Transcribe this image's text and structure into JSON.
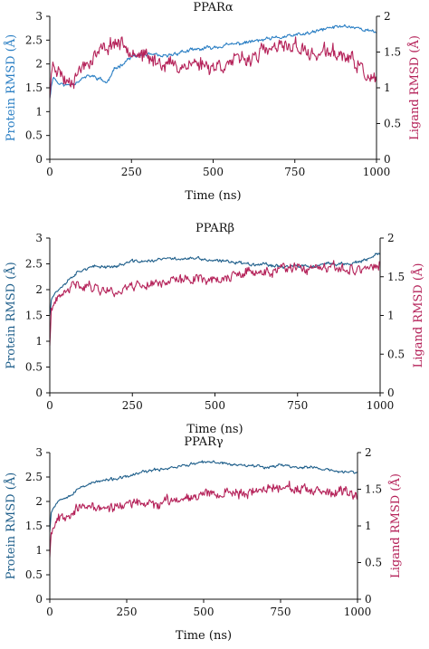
{
  "colors": {
    "protein": "#1f5f8b",
    "protein_alpha": "#2b7fc4",
    "ligand": "#b5235a",
    "axis": "#111111"
  },
  "chart_data": [
    {
      "type": "line",
      "title": "PPARα",
      "xlabel": "Time (ns)",
      "ylabel": "Protein RMSD (Å)",
      "y2label": "Ligand RMSD (Å)",
      "xlim": [
        0,
        1000
      ],
      "ylim": [
        0,
        3
      ],
      "y2lim": [
        0,
        2
      ],
      "xticks": [
        "0",
        "250",
        "500",
        "750",
        "1000"
      ],
      "yticks": [
        "0",
        "0.5",
        "1",
        "1.5",
        "2",
        "2.5",
        "3"
      ],
      "y2ticks": [
        "0",
        "0.5",
        "1",
        "1.5",
        "2"
      ],
      "series": [
        {
          "axis": "left",
          "color": "#2b7fc4",
          "noise": 0.06,
          "seed": 11,
          "x": [
            0,
            10,
            25,
            50,
            75,
            100,
            125,
            150,
            175,
            200,
            250,
            300,
            350,
            400,
            450,
            500,
            550,
            600,
            650,
            700,
            750,
            800,
            850,
            900,
            950,
            1000
          ],
          "values": [
            1.3,
            1.75,
            1.6,
            1.55,
            1.6,
            1.7,
            1.75,
            1.7,
            1.6,
            1.9,
            2.15,
            2.2,
            2.15,
            2.25,
            2.3,
            2.35,
            2.4,
            2.45,
            2.5,
            2.55,
            2.6,
            2.65,
            2.75,
            2.8,
            2.75,
            2.65
          ]
        },
        {
          "axis": "right",
          "color": "#b5235a",
          "noise": 0.16,
          "seed": 23,
          "x": [
            0,
            10,
            25,
            50,
            75,
            100,
            150,
            200,
            250,
            300,
            350,
            400,
            450,
            500,
            550,
            600,
            650,
            700,
            750,
            800,
            850,
            900,
            950,
            980,
            1000
          ],
          "values": [
            0.9,
            1.4,
            1.25,
            1.1,
            1.15,
            1.3,
            1.5,
            1.65,
            1.55,
            1.4,
            1.35,
            1.3,
            1.35,
            1.3,
            1.35,
            1.4,
            1.5,
            1.55,
            1.6,
            1.45,
            1.5,
            1.45,
            1.3,
            1.1,
            1.05
          ]
        }
      ]
    },
    {
      "type": "line",
      "title": "PPARβ",
      "xlabel": "Time (ns)",
      "ylabel": "Protein RMSD (Å)",
      "y2label": "Ligand RMSD (Å)",
      "xlim": [
        0,
        1000
      ],
      "ylim": [
        0,
        3
      ],
      "y2lim": [
        0,
        2
      ],
      "xticks": [
        "0",
        "250",
        "500",
        "750",
        "1000"
      ],
      "yticks": [
        "0",
        "0.5",
        "1",
        "1.5",
        "2",
        "2.5",
        "3"
      ],
      "y2ticks": [
        "0",
        "0.5",
        "1",
        "1.5",
        "2"
      ],
      "series": [
        {
          "axis": "left",
          "color": "#1f5f8b",
          "noise": 0.05,
          "seed": 37,
          "x": [
            0,
            5,
            25,
            50,
            75,
            100,
            150,
            200,
            250,
            300,
            350,
            400,
            450,
            500,
            550,
            600,
            650,
            700,
            750,
            800,
            850,
            900,
            950,
            1000
          ],
          "values": [
            1.5,
            1.85,
            2.0,
            2.15,
            2.3,
            2.4,
            2.45,
            2.45,
            2.55,
            2.55,
            2.6,
            2.6,
            2.6,
            2.55,
            2.55,
            2.5,
            2.5,
            2.45,
            2.45,
            2.45,
            2.5,
            2.5,
            2.55,
            2.7
          ]
        },
        {
          "axis": "right",
          "color": "#b5235a",
          "noise": 0.1,
          "seed": 41,
          "x": [
            0,
            5,
            25,
            50,
            75,
            100,
            150,
            200,
            250,
            300,
            350,
            400,
            450,
            500,
            550,
            600,
            650,
            700,
            750,
            800,
            850,
            900,
            950,
            1000
          ],
          "values": [
            0.6,
            1.1,
            1.2,
            1.3,
            1.4,
            1.4,
            1.35,
            1.3,
            1.4,
            1.4,
            1.45,
            1.45,
            1.5,
            1.45,
            1.5,
            1.55,
            1.55,
            1.6,
            1.6,
            1.6,
            1.6,
            1.6,
            1.6,
            1.65
          ]
        }
      ]
    },
    {
      "type": "line",
      "title": "PPARγ",
      "xlabel": "Time (ns)",
      "ylabel": "Protein RMSD (Å)",
      "y2label": "Ligand RMSD (Å)",
      "xlim": [
        0,
        1000
      ],
      "ylim": [
        0,
        3
      ],
      "y2lim": [
        0,
        2
      ],
      "xticks": [
        "0",
        "250",
        "500",
        "750",
        "1000"
      ],
      "yticks": [
        "0",
        "0.5",
        "1",
        "1.5",
        "2",
        "2.5",
        "3"
      ],
      "y2ticks": [
        "0",
        "0.5",
        "1",
        "1.5",
        "2"
      ],
      "series": [
        {
          "axis": "left",
          "color": "#1f5f8b",
          "noise": 0.045,
          "seed": 53,
          "x": [
            0,
            5,
            25,
            50,
            75,
            100,
            150,
            200,
            250,
            300,
            350,
            400,
            450,
            500,
            550,
            600,
            650,
            700,
            750,
            800,
            850,
            900,
            950,
            1000
          ],
          "values": [
            1.4,
            1.8,
            2.0,
            2.1,
            2.15,
            2.3,
            2.4,
            2.45,
            2.5,
            2.6,
            2.65,
            2.7,
            2.75,
            2.8,
            2.8,
            2.75,
            2.75,
            2.7,
            2.75,
            2.7,
            2.7,
            2.65,
            2.6,
            2.6
          ]
        },
        {
          "axis": "right",
          "color": "#b5235a",
          "noise": 0.1,
          "seed": 67,
          "x": [
            0,
            5,
            25,
            50,
            75,
            100,
            150,
            200,
            250,
            300,
            350,
            400,
            450,
            500,
            550,
            600,
            650,
            700,
            750,
            800,
            850,
            900,
            950,
            1000
          ],
          "values": [
            0.6,
            0.95,
            1.1,
            1.15,
            1.2,
            1.25,
            1.25,
            1.25,
            1.3,
            1.3,
            1.3,
            1.35,
            1.4,
            1.45,
            1.45,
            1.45,
            1.45,
            1.5,
            1.55,
            1.5,
            1.45,
            1.45,
            1.45,
            1.4
          ]
        }
      ]
    }
  ]
}
